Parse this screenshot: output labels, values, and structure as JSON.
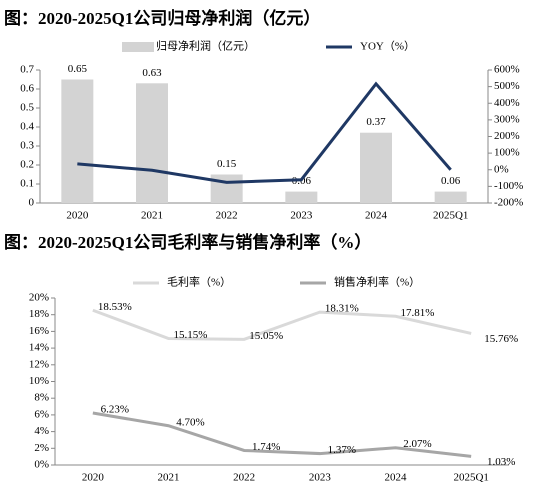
{
  "chart_data": [
    {
      "type": "combo",
      "title": "图：2020-2025Q1公司归母净利润（亿元）",
      "categories": [
        "2020",
        "2021",
        "2022",
        "2023",
        "2024",
        "2025Q1"
      ],
      "series": [
        {
          "name": "归母净利润（亿元）",
          "type": "bar",
          "color": "#d3d3d3",
          "values": [
            0.65,
            0.63,
            0.15,
            0.06,
            0.37,
            0.06
          ]
        },
        {
          "name": "YOY（%）",
          "type": "line",
          "axis": "y2",
          "color": "#1f3864",
          "values": [
            35,
            -3,
            -76,
            -60,
            517,
            0
          ]
        }
      ],
      "ylim": [
        0,
        0.7
      ],
      "yticks": [
        0,
        0.1,
        0.2,
        0.3,
        0.4,
        0.5,
        0.6,
        0.7
      ],
      "y2lim": [
        -200,
        600
      ],
      "y2ticks": [
        {
          "value": -200,
          "label": "-200%"
        },
        {
          "value": -100,
          "label": "-100%"
        },
        {
          "value": 0,
          "label": "0%"
        },
        {
          "value": 100,
          "label": "100%"
        },
        {
          "value": 200,
          "label": "200%"
        },
        {
          "value": 300,
          "label": "300%"
        },
        {
          "value": 400,
          "label": "400%"
        },
        {
          "value": 500,
          "label": "500%"
        },
        {
          "value": 600,
          "label": "600%"
        }
      ]
    },
    {
      "type": "line",
      "title": "图：2020-2025Q1公司毛利率与销售净利率（%）",
      "categories": [
        "2020",
        "2021",
        "2022",
        "2023",
        "2024",
        "2025Q1"
      ],
      "series": [
        {
          "name": "毛利率（%）",
          "color": "#d9d9d9",
          "values": [
            18.53,
            15.15,
            15.05,
            18.31,
            17.81,
            15.76
          ],
          "value_labels": [
            "18.53%",
            "15.15%",
            "15.05%",
            "18.31%",
            "17.81%",
            "15.76%"
          ]
        },
        {
          "name": "销售净利率（%）",
          "color": "#a6a6a6",
          "values": [
            6.23,
            4.7,
            1.74,
            1.37,
            2.07,
            1.03
          ],
          "value_labels": [
            "6.23%",
            "4.70%",
            "1.74%",
            "1.37%",
            "2.07%",
            "1.03%"
          ]
        }
      ],
      "ylim": [
        0,
        20
      ],
      "yticks": [
        {
          "value": 0,
          "label": "0%"
        },
        {
          "value": 2,
          "label": "2%"
        },
        {
          "value": 4,
          "label": "4%"
        },
        {
          "value": 6,
          "label": "6%"
        },
        {
          "value": 8,
          "label": "8%"
        },
        {
          "value": 10,
          "label": "10%"
        },
        {
          "value": 12,
          "label": "12%"
        },
        {
          "value": 14,
          "label": "14%"
        },
        {
          "value": 16,
          "label": "16%"
        },
        {
          "value": 18,
          "label": "18%"
        },
        {
          "value": 20,
          "label": "20%"
        }
      ]
    }
  ]
}
